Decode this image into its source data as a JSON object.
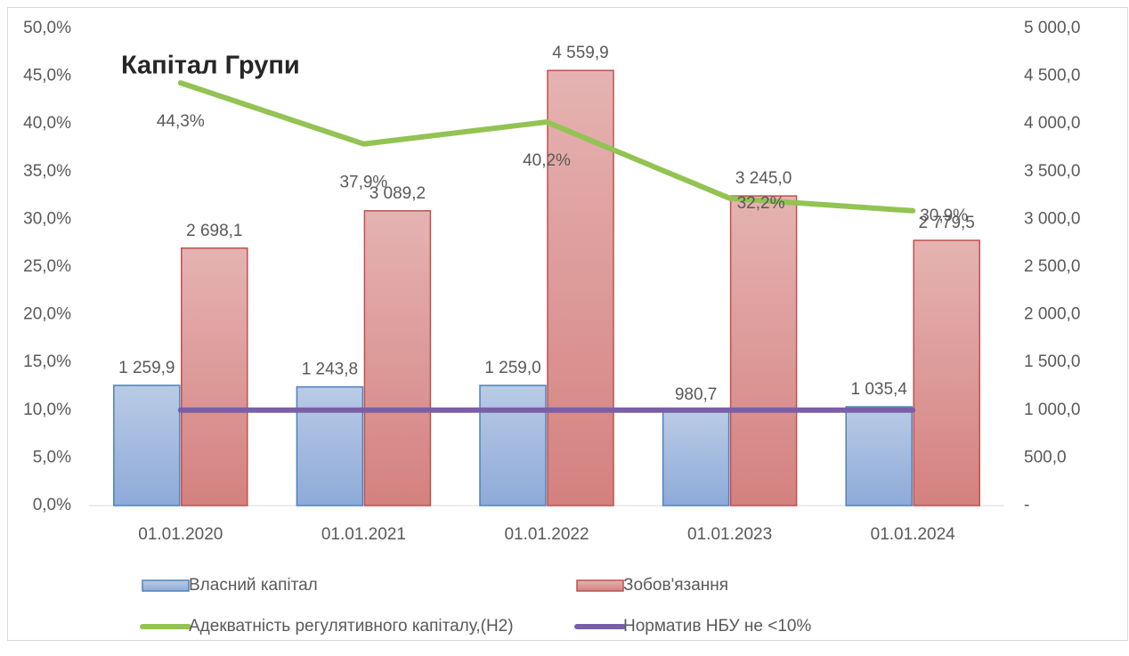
{
  "chart_data": {
    "type": "bar",
    "title": "Капітал Групи",
    "categories": [
      "01.01.2020",
      "01.01.2021",
      "01.01.2022",
      "01.01.2023",
      "01.01.2024"
    ],
    "series": [
      {
        "name": "Власний капітал",
        "type": "bar",
        "axis": "y2",
        "color": "#4f81bd",
        "values": [
          1259.9,
          1243.8,
          1259.0,
          980.7,
          1035.4
        ],
        "value_labels": [
          "1 259,9",
          "1 243,8",
          "1 259,0",
          "980,7",
          "1 035,4"
        ]
      },
      {
        "name": "Зобов'язання",
        "type": "bar",
        "axis": "y2",
        "color": "#c0504d",
        "values": [
          2698.1,
          3089.2,
          4559.9,
          3245.0,
          2779.5
        ],
        "value_labels": [
          "2 698,1",
          "3 089,2",
          "4 559,9",
          "3 245,0",
          "2 779,5"
        ]
      },
      {
        "name": "Адекватність регулятивного капіталу,(Н2)",
        "type": "line",
        "color": "#92c353",
        "values": [
          44.3,
          37.9,
          40.2,
          32.2,
          30.9
        ],
        "value_labels": [
          "44,3%",
          "37,9%",
          "40,2%",
          "32,2%",
          "30,9%"
        ]
      },
      {
        "name": "Норматив НБУ не <10%",
        "type": "line",
        "color": "#7a5fa6",
        "values": [
          10,
          10,
          10,
          10,
          10
        ]
      }
    ],
    "ylim": [
      0,
      50
    ],
    "yticks": [
      {
        "value": 0,
        "label": "0,0%"
      },
      {
        "value": 5,
        "label": "5,0%"
      },
      {
        "value": 10,
        "label": "10,0%"
      },
      {
        "value": 15,
        "label": "15,0%"
      },
      {
        "value": 20,
        "label": "20,0%"
      },
      {
        "value": 25,
        "label": "25,0%"
      },
      {
        "value": 30,
        "label": "30,0%"
      },
      {
        "value": 35,
        "label": "35,0%"
      },
      {
        "value": 40,
        "label": "40,0%"
      },
      {
        "value": 45,
        "label": "45,0%"
      },
      {
        "value": 50,
        "label": "50,0%"
      }
    ],
    "y2lim": [
      0,
      5000
    ],
    "y2ticks": [
      {
        "value": 0,
        "label": "-"
      },
      {
        "value": 500,
        "label": "500,0"
      },
      {
        "value": 1000,
        "label": "1 000,0"
      },
      {
        "value": 1500,
        "label": "1 500,0"
      },
      {
        "value": 2000,
        "label": "2 000,0"
      },
      {
        "value": 2500,
        "label": "2 500,0"
      },
      {
        "value": 3000,
        "label": "3 000,0"
      },
      {
        "value": 3500,
        "label": "3 500,0"
      },
      {
        "value": 4000,
        "label": "4 000,0"
      },
      {
        "value": 4500,
        "label": "4 500,0"
      },
      {
        "value": 5000,
        "label": "5 000,0"
      }
    ],
    "grid": false
  }
}
